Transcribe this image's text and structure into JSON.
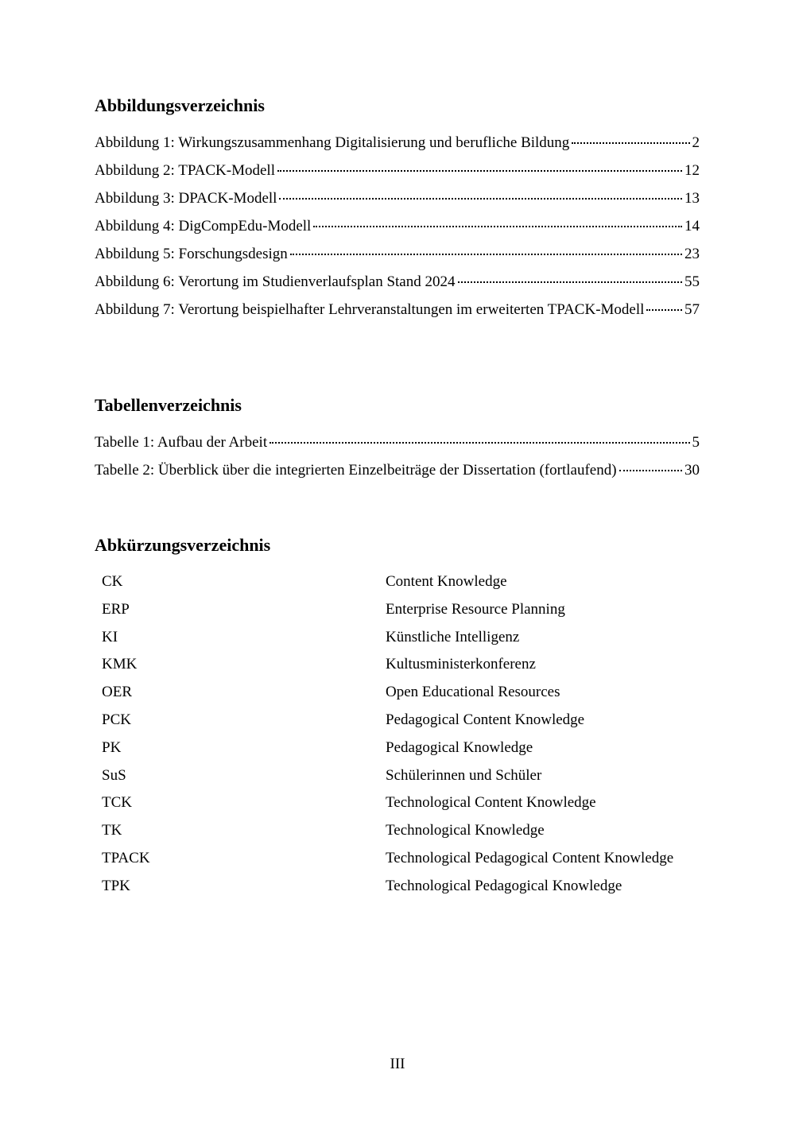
{
  "figures": {
    "title": "Abbildungsverzeichnis",
    "entries": [
      {
        "label": "Abbildung 1: Wirkungszusammenhang Digitalisierung und berufliche Bildung",
        "page": 2
      },
      {
        "label": "Abbildung 2: TPACK-Modell",
        "page": 12
      },
      {
        "label": "Abbildung 3: DPACK-Modell",
        "page": 13
      },
      {
        "label": "Abbildung 4: DigCompEdu-Modell",
        "page": 14
      },
      {
        "label": "Abbildung 5: Forschungsdesign",
        "page": 23
      },
      {
        "label": "Abbildung 6: Verortung im Studienverlaufsplan Stand 2024",
        "page": 55
      },
      {
        "label": "Abbildung 7: Verortung beispielhafter Lehrveranstaltungen im erweiterten TPACK-Modell",
        "page": 57
      }
    ]
  },
  "tables": {
    "title": "Tabellenverzeichnis",
    "entries": [
      {
        "label": "Tabelle 1: Aufbau der Arbeit",
        "page": 5
      },
      {
        "label": "Tabelle 2: Überblick über die integrierten Einzelbeiträge der Dissertation (fortlaufend)",
        "page": 30
      }
    ]
  },
  "abbreviations": {
    "title": "Abkürzungsverzeichnis",
    "rows": [
      [
        "CK",
        "Content Knowledge"
      ],
      [
        "ERP",
        "Enterprise Resource Planning"
      ],
      [
        "KI",
        "Künstliche Intelligenz"
      ],
      [
        "KMK",
        "Kultusministerkonferenz"
      ],
      [
        "OER",
        "Open Educational Resources"
      ],
      [
        "PCK",
        "Pedagogical Content Knowledge"
      ],
      [
        "PK",
        "Pedagogical Knowledge"
      ],
      [
        "SuS",
        "Schülerinnen und Schüler"
      ],
      [
        "TCK",
        "Technological Content Knowledge"
      ],
      [
        "TK",
        "Technological Knowledge"
      ],
      [
        "TPACK",
        "Technological Pedagogical Content Knowledge"
      ],
      [
        "TPK",
        "Technological Pedagogical Knowledge"
      ]
    ]
  },
  "footer": {
    "page_number": "III"
  }
}
